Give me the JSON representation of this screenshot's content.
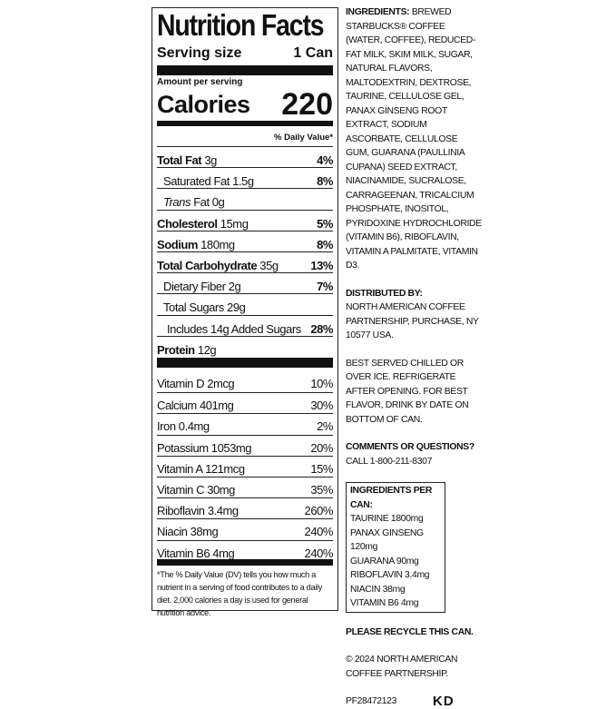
{
  "facts": {
    "title": "Nutrition Facts",
    "serving_label": "Serving size",
    "serving_value": "1 Can",
    "amount_label": "Amount per serving",
    "calories_label": "Calories",
    "calories_value": "220",
    "dv_header": "% Daily Value*",
    "rows": [
      {
        "name": "Total Fat",
        "amount": "3g",
        "dv": "4%"
      },
      {
        "name": "Saturated Fat",
        "amount": "1.5g",
        "dv": "8%"
      },
      {
        "name": "Trans",
        "amount": "Fat 0g",
        "dv": ""
      },
      {
        "name": "Cholesterol",
        "amount": "15mg",
        "dv": "5%"
      },
      {
        "name": "Sodium",
        "amount": "180mg",
        "dv": "8%"
      },
      {
        "name": "Total Carbohydrate",
        "amount": "35g",
        "dv": "13%"
      },
      {
        "name": "Dietary Fiber",
        "amount": "2g",
        "dv": "7%"
      },
      {
        "name": "Total Sugars",
        "amount": "29g",
        "dv": ""
      },
      {
        "name": "Includes 14g Added Sugars",
        "amount": "",
        "dv": "28%"
      },
      {
        "name": "Protein",
        "amount": "12g",
        "dv": ""
      }
    ],
    "vitamins": [
      {
        "name": "Vitamin D 2mcg",
        "dv": "10%"
      },
      {
        "name": "Calcium 401mg",
        "dv": "30%"
      },
      {
        "name": "Iron 0.4mg",
        "dv": "2%"
      },
      {
        "name": "Potassium 1053mg",
        "dv": "20%"
      },
      {
        "name": "Vitamin A 121mcg",
        "dv": "15%"
      },
      {
        "name": "Vitamin C 30mg",
        "dv": "35%"
      },
      {
        "name": "Riboflavin 3.4mg",
        "dv": "260%"
      },
      {
        "name": "Niacin 38mg",
        "dv": "240%"
      },
      {
        "name": "Vitamin B6 4mg",
        "dv": "240%"
      }
    ],
    "footnote": "*The % Daily Value (DV) tells you how much a nutrient in a serving of food contributes to a daily diet. 2,000 calories a day is used for general nutrition advice."
  },
  "side": {
    "ingredients_label": "INGREDIENTS:",
    "ingredients": "BREWED STARBUCKS® COFFEE (WATER, COFFEE), REDUCED-FAT MILK, SKIM MILK, SUGAR, NATURAL FLAVORS, MALTODEXTRIN, DEXTROSE, TAURINE, CELLULOSE GEL, PANAX GINSENG ROOT EXTRACT, SODIUM ASCORBATE, CELLULOSE GUM, GUARANA (PAULLINIA CUPANA) SEED EXTRACT, NIACINAMIDE, SUCRALOSE, CARRAGEENAN, TRICALCIUM PHOSPHATE, INOSITOL, PYRIDOXINE HYDROCHLORIDE (VITAMIN B6), RIBOFLAVIN, VITAMIN A PALMITATE, VITAMIN D3.",
    "distributed_label": "DISTRIBUTED BY:",
    "distributed": "NORTH AMERICAN COFFEE PARTNERSHIP, PURCHASE, NY 10577 USA.",
    "serving_note": "BEST SERVED CHILLED OR OVER ICE. REFRIGERATE AFTER OPENING. FOR BEST FLAVOR, DRINK BY DATE ON BOTTOM OF CAN.",
    "comments_label": "COMMENTS OR QUESTIONS?",
    "comments": "CALL 1-800-211-8307",
    "per_can_label": "INGREDIENTS PER CAN:",
    "per_can": [
      "TAURINE 1800mg",
      "PANAX GINSENG 120mg",
      "GUARANA 90mg",
      "RIBOFLAVIN 3.4mg",
      "NIACIN 38mg",
      "VITAMIN B6 4mg"
    ],
    "recycle": "PLEASE RECYCLE THIS CAN.",
    "copyright": "© 2024 NORTH AMERICAN COFFEE PARTNERSHIP.",
    "code": "PF28472123",
    "mark": "KD"
  }
}
